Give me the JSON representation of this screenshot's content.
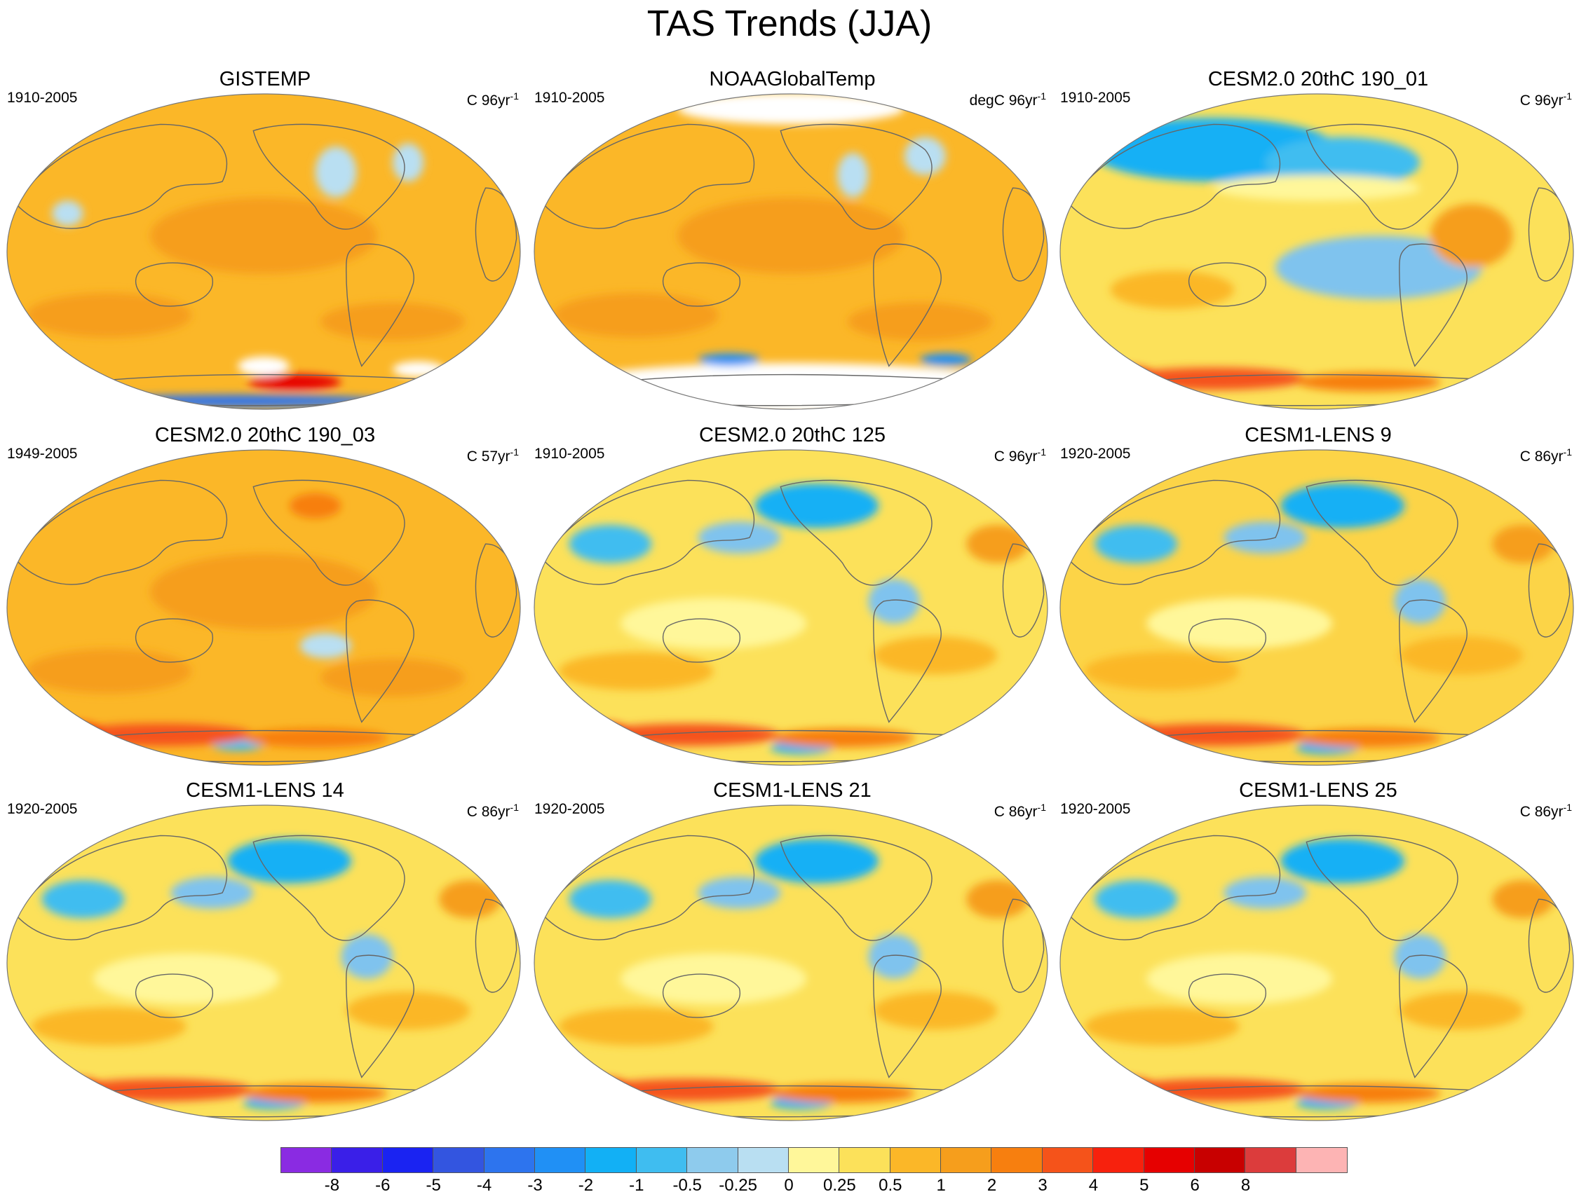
{
  "title": "TAS Trends (JJA)",
  "panels": [
    {
      "title": "GISTEMP",
      "period": "1910-2005",
      "units_prefix": "C 96yr",
      "units_exp": "-1",
      "base": "#fbb728",
      "accent": "#f69e1c",
      "cool": "#b9dff2",
      "variant": "obs_gis"
    },
    {
      "title": "NOAAGlobalTemp",
      "period": "1910-2005",
      "units_prefix": "degC 96yr",
      "units_exp": "-1",
      "base": "#fbb728",
      "accent": "#f69e1c",
      "cool": "#b9dff2",
      "variant": "obs_noaa"
    },
    {
      "title": "CESM2.0 20thC 190_01",
      "period": "1910-2005",
      "units_prefix": "C 96yr",
      "units_exp": "-1",
      "base": "#fce15a",
      "accent": "#fbb728",
      "cool": "#7fc3ee",
      "variant": "model_cool"
    },
    {
      "title": "CESM2.0 20thC 190_03",
      "period": "1949-2005",
      "units_prefix": "C 57yr",
      "units_exp": "-1",
      "base": "#fbb728",
      "accent": "#f69e1c",
      "cool": "#b9dff2",
      "variant": "model_warm"
    },
    {
      "title": "CESM2.0 20thC 125",
      "period": "1910-2005",
      "units_prefix": "C 96yr",
      "units_exp": "-1",
      "base": "#fce15a",
      "accent": "#fbb728",
      "cool": "#7fc3ee",
      "variant": "model_mixed"
    },
    {
      "title": "CESM1-LENS 9",
      "period": "1920-2005",
      "units_prefix": "C 86yr",
      "units_exp": "-1",
      "base": "#fcd447",
      "accent": "#fbb728",
      "cool": "#7fc3ee",
      "variant": "model_mixed"
    },
    {
      "title": "CESM1-LENS 14",
      "period": "1920-2005",
      "units_prefix": "C 86yr",
      "units_exp": "-1",
      "base": "#fce15a",
      "accent": "#fbb728",
      "cool": "#7fc3ee",
      "variant": "model_mixed"
    },
    {
      "title": "CESM1-LENS 21",
      "period": "1920-2005",
      "units_prefix": "C 86yr",
      "units_exp": "-1",
      "base": "#fce15a",
      "accent": "#fbb728",
      "cool": "#7fc3ee",
      "variant": "model_mixed"
    },
    {
      "title": "CESM1-LENS 25",
      "period": "1920-2005",
      "units_prefix": "C 86yr",
      "units_exp": "-1",
      "base": "#fce15a",
      "accent": "#fbb728",
      "cool": "#7fc3ee",
      "variant": "model_mixed"
    }
  ],
  "colorbar": {
    "colors": [
      "#8a2be2",
      "#3a1fe8",
      "#1a23f2",
      "#3355e0",
      "#2d74ee",
      "#2090f5",
      "#12b0f5",
      "#3fbdf0",
      "#8ecbed",
      "#b9dff2",
      "#fff79a",
      "#fce15a",
      "#fbb728",
      "#f69e1c",
      "#f77f0f",
      "#f5531a",
      "#f7210d",
      "#e60000",
      "#c80000",
      "#dc3c3c",
      "#fdb4b4"
    ],
    "labels": [
      "-8",
      "-6",
      "-5",
      "-4",
      "-3",
      "-2",
      "-1",
      "-0.5",
      "-0.25",
      "0",
      "0.25",
      "0.5",
      "1",
      "2",
      "3",
      "4",
      "5",
      "6",
      "8"
    ]
  }
}
